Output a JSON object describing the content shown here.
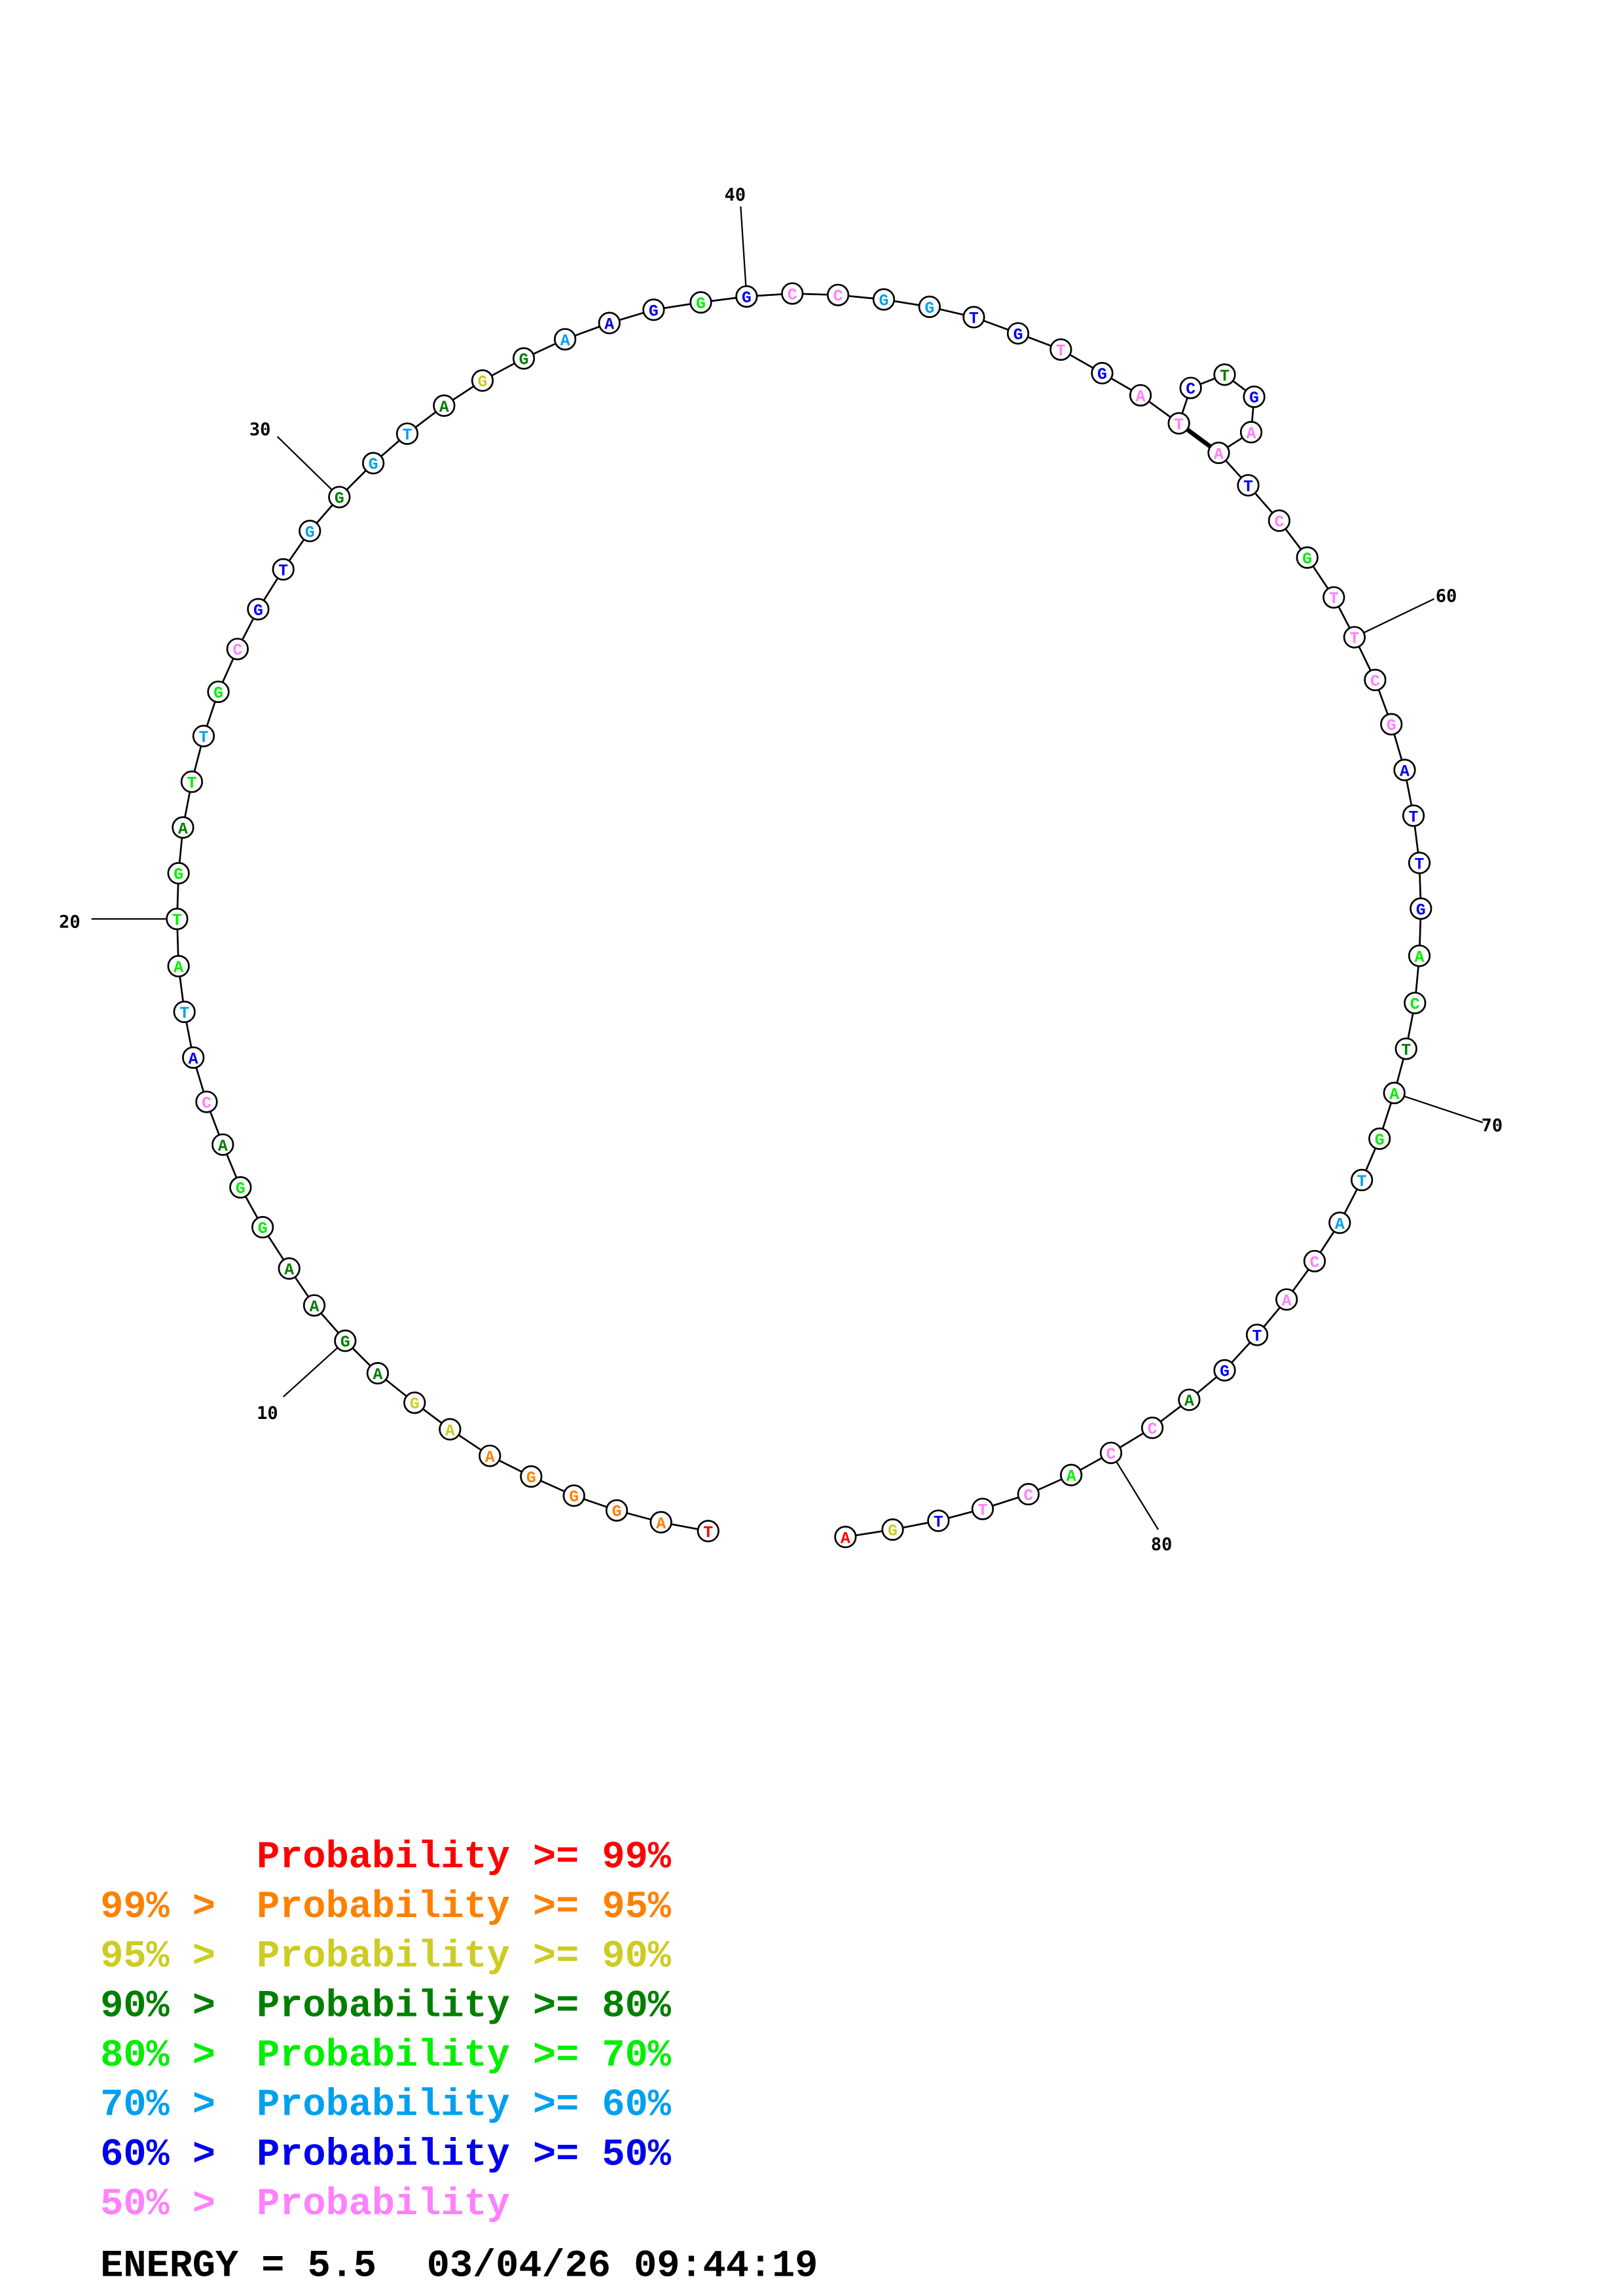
{
  "structure": {
    "sequence": [
      "T",
      "A",
      "G",
      "G",
      "G",
      "A",
      "A",
      "G",
      "A",
      "G",
      "A",
      "A",
      "G",
      "G",
      "A",
      "C",
      "A",
      "T",
      "A",
      "T",
      "G",
      "A",
      "T",
      "T",
      "G",
      "C",
      "G",
      "T",
      "G",
      "G",
      "G",
      "T",
      "A",
      "G",
      "G",
      "A",
      "A",
      "G",
      "G",
      "G",
      "C",
      "C",
      "G",
      "G",
      "T",
      "G",
      "T",
      "G",
      "A",
      "T",
      "C",
      "T",
      "G",
      "A",
      "A",
      "T",
      "C",
      "G",
      "T",
      "T",
      "C",
      "G",
      "A",
      "T",
      "T",
      "G",
      "A",
      "C",
      "T",
      "A",
      "G",
      "T",
      "A",
      "C",
      "A",
      "T",
      "G",
      "A",
      "C",
      "C",
      "A",
      "C",
      "T",
      "T",
      "G",
      "A"
    ],
    "probability_class": [
      0,
      1,
      1,
      1,
      1,
      1,
      2,
      2,
      3,
      3,
      3,
      3,
      4,
      4,
      3,
      7,
      6,
      5,
      4,
      4,
      4,
      3,
      4,
      5,
      4,
      7,
      6,
      6,
      5,
      3,
      5,
      5,
      3,
      2,
      3,
      5,
      6,
      6,
      4,
      6,
      7,
      7,
      5,
      5,
      6,
      6,
      7,
      6,
      7,
      7,
      6,
      3,
      6,
      7,
      7,
      6,
      7,
      4,
      7,
      7,
      7,
      7,
      6,
      6,
      6,
      6,
      4,
      4,
      3,
      4,
      4,
      5,
      5,
      7,
      7,
      6,
      6,
      3,
      7,
      7,
      4,
      7,
      7,
      6,
      2,
      0
    ],
    "pairs": [
      [
        50,
        55
      ]
    ],
    "position_labels": [
      "10",
      "20",
      "30",
      "40",
      "60",
      "70",
      "80"
    ]
  },
  "legend": {
    "colors": [
      "#ff0000",
      "#ff8000",
      "#cccc22",
      "#007f00",
      "#00ee00",
      "#00a0ee",
      "#0000ee",
      "#ff80ff"
    ],
    "prefixes": [
      "",
      "99% > ",
      "95% > ",
      "90% > ",
      "80% > ",
      "70% > ",
      "60% > ",
      "50% > "
    ],
    "labels": [
      "Probability >= 99%",
      "Probability >= 95%",
      "Probability >= 90%",
      "Probability >= 80%",
      "Probability >= 70%",
      "Probability >= 60%",
      "Probability >= 50%",
      "Probability"
    ]
  },
  "footer": {
    "energy": "ENERGY = 5.5",
    "timestamp": "03/04/26 09:44:19"
  }
}
